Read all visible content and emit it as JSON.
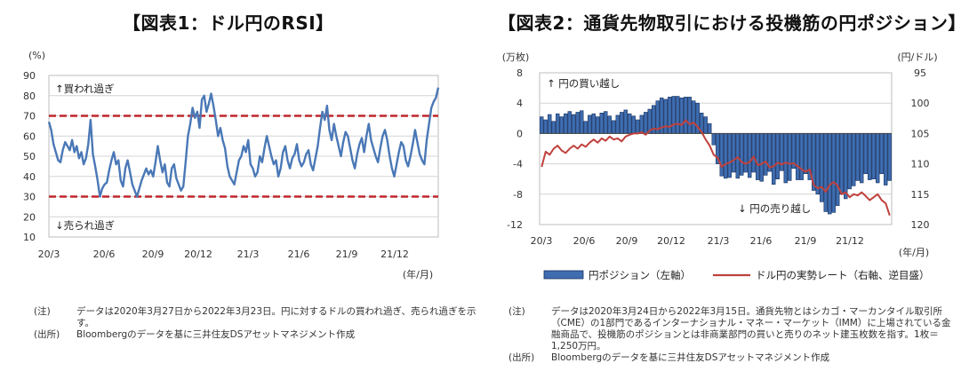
{
  "left": {
    "title": "【図表1：ドル円のRSI】",
    "notes": [
      {
        "label": "(注)",
        "text": "データは2020年3月27日から2022年3月23日。円に対するドルの買われ過ぎ、売られ過ぎを示す。"
      },
      {
        "label": "(出所)",
        "text": "Bloombergのデータを基に三井住友DSアセットマネジメント作成"
      }
    ]
  },
  "right": {
    "title": "【図表2：通貨先物取引における投機筋の円ポジション】",
    "notes": [
      {
        "label": "(注)",
        "text": "データは2020年3月24日から2022年3月15日。通貨先物とはシカゴ・マーカンタイル取引所（CME）の1部門であるインターナショナル・マネー・マーケット（IMM）に上場されている金融商品で、投機筋のポジションとは非商業部門の買いと売りのネット建玉枚数を指す。1枚＝1,250万円。"
      },
      {
        "label": "(出所)",
        "text": "Bloombergのデータを基に三井住友DSアセットマネジメント作成"
      }
    ]
  },
  "colors": {
    "line": "#4a78b6",
    "threshold": "#c0262b",
    "bar_fill": "#3f6db0",
    "bar_edge": "#16305e",
    "rate": "#c0413c",
    "grid": "#d4d4d4"
  },
  "chart_data": [
    {
      "type": "line",
      "title": "ドル円のRSI",
      "ylabel": "(%)",
      "xlabel": "(年/月)",
      "ylim": [
        10,
        90
      ],
      "yticks": [
        10,
        20,
        30,
        40,
        50,
        60,
        70,
        80,
        90
      ],
      "xticks": [
        "20/3",
        "20/6",
        "20/9",
        "20/12",
        "21/3",
        "21/6",
        "21/9",
        "21/12"
      ],
      "thresholds": [
        70,
        30
      ],
      "annotations": [
        "↑買われ過ぎ",
        "↓売られ過ぎ"
      ],
      "series": [
        {
          "name": "ドル円のRSI",
          "values": [
            67,
            63,
            56,
            52,
            48,
            47,
            53,
            57,
            55,
            53,
            58,
            52,
            55,
            49,
            52,
            46,
            49,
            56,
            68,
            51,
            45,
            38,
            30,
            34,
            36,
            37,
            43,
            48,
            52,
            46,
            48,
            38,
            35,
            44,
            48,
            42,
            36,
            33,
            30,
            34,
            38,
            41,
            44,
            41,
            43,
            40,
            47,
            55,
            48,
            42,
            46,
            37,
            35,
            44,
            46,
            39,
            36,
            33,
            35,
            47,
            60,
            66,
            74,
            69,
            72,
            64,
            78,
            80,
            72,
            76,
            81,
            75,
            68,
            60,
            64,
            58,
            54,
            45,
            40,
            38,
            36,
            42,
            48,
            50,
            55,
            52,
            58,
            46,
            44,
            40,
            42,
            50,
            47,
            54,
            60,
            55,
            50,
            46,
            48,
            40,
            44,
            52,
            55,
            48,
            44,
            49,
            51,
            56,
            48,
            45,
            47,
            51,
            53,
            46,
            43,
            49,
            55,
            64,
            72,
            68,
            75,
            63,
            58,
            66,
            60,
            55,
            50,
            57,
            62,
            60,
            54,
            48,
            44,
            51,
            56,
            59,
            52,
            60,
            66,
            58,
            54,
            50,
            47,
            54,
            60,
            63,
            58,
            50,
            44,
            40,
            46,
            52,
            57,
            55,
            48,
            45,
            50,
            56,
            63,
            57,
            51,
            48,
            46,
            58,
            66,
            74,
            77,
            79,
            84
          ]
        }
      ]
    },
    {
      "type": "bar",
      "title": "通貨先物取引における投機筋の円ポジション",
      "ylabel_left": "(万枚)",
      "ylabel_right": "(円/ドル)",
      "xlabel": "(年/月)",
      "ylim": [
        -12,
        8
      ],
      "yticks": [
        -12,
        -8,
        -4,
        0,
        4,
        8
      ],
      "y2lim": [
        95,
        120
      ],
      "y2_inverted": true,
      "y2ticks": [
        95,
        100,
        105,
        110,
        115,
        120
      ],
      "xticks": [
        "20/3",
        "20/6",
        "20/9",
        "20/12",
        "21/3",
        "21/6",
        "21/9",
        "21/12"
      ],
      "annotations": [
        "↑ 円の買い越し",
        "↓ 円の売り越し"
      ],
      "series": [
        {
          "name": "円ポジション（左軸）",
          "axis": "left",
          "values": [
            2.2,
            1.8,
            2.5,
            1.6,
            2.6,
            2.2,
            2.6,
            2.9,
            2.5,
            2.8,
            3.0,
            1.6,
            2.4,
            2.6,
            2.2,
            2.7,
            2.9,
            2.3,
            1.7,
            2.4,
            2.8,
            3.1,
            2.6,
            2.3,
            1.8,
            2.4,
            2.8,
            3.2,
            3.7,
            4.3,
            4.7,
            4.5,
            4.8,
            4.9,
            4.9,
            4.7,
            4.8,
            4.8,
            4.3,
            4.0,
            2.7,
            2.2,
            1.3,
            -1.5,
            -4.0,
            -5.6,
            -5.9,
            -5.8,
            -5.1,
            -5.9,
            -5.5,
            -5.1,
            -5.8,
            -5.1,
            -6.1,
            -6.3,
            -5.5,
            -5.0,
            -6.7,
            -6.0,
            -4.9,
            -6.5,
            -6.2,
            -4.6,
            -6.1,
            -6.1,
            -5.3,
            -6.1,
            -7.5,
            -8.0,
            -9.0,
            -10.3,
            -10.6,
            -10.4,
            -9.5,
            -8.0,
            -8.6,
            -7.3,
            -6.9,
            -6.2,
            -6.5,
            -5.3,
            -6.1,
            -6.0,
            -6.5,
            -5.3,
            -6.8,
            -6.2
          ]
        },
        {
          "name": "ドル円の実勢レート（右軸、逆目盛）",
          "axis": "right",
          "values": [
            110.5,
            108.0,
            108.5,
            107.5,
            107.0,
            107.8,
            108.2,
            107.5,
            107.0,
            107.5,
            106.8,
            107.2,
            106.5,
            106.0,
            106.5,
            105.8,
            106.2,
            105.5,
            106.0,
            105.8,
            106.3,
            105.5,
            105.2,
            105.0,
            105.0,
            104.8,
            105.2,
            104.5,
            104.2,
            104.3,
            104.0,
            103.8,
            103.9,
            103.5,
            103.4,
            103.6,
            102.8,
            103.5,
            103.2,
            103.9,
            104.8,
            106.0,
            107.0,
            108.5,
            109.0,
            110.5,
            110.0,
            109.8,
            109.4,
            108.9,
            109.7,
            110.0,
            109.7,
            108.8,
            110.2,
            110.0,
            109.6,
            110.6,
            110.4,
            109.8,
            110.1,
            109.8,
            110.0,
            109.9,
            110.4,
            110.9,
            111.3,
            110.9,
            113.5,
            114.0,
            113.8,
            114.6,
            113.5,
            113.0,
            113.6,
            115.0,
            114.7,
            115.5,
            115.0,
            115.2,
            114.7,
            115.3,
            116.0,
            115.5,
            115.0,
            116.0,
            116.5,
            118.5
          ]
        }
      ],
      "legend": [
        "円ポジション（左軸）",
        "ドル円の実勢レート（右軸、逆目盛）"
      ]
    }
  ]
}
